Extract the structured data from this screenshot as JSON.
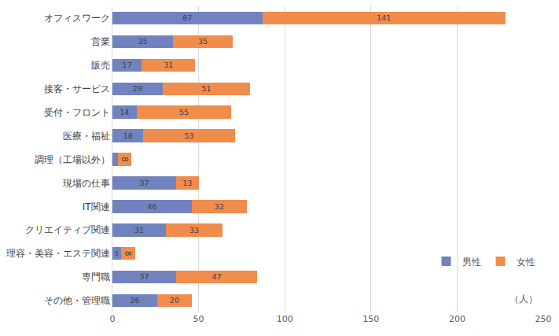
{
  "chart_data": {
    "type": "bar",
    "orientation": "horizontal",
    "stacked": true,
    "data_labels": true,
    "grid": true,
    "legend": "bottom-right",
    "annotations": [
      "（人）"
    ],
    "categories": [
      "オフィスワーク",
      "営業",
      "販売",
      "接客・サービス",
      "受付・フロント",
      "医療・福祉",
      "調理（工場以外）",
      "現場の仕事",
      "IT関連",
      "クリエイティブ関連",
      "理容・美容・エステ関連",
      "専門職",
      "その他・管理職"
    ],
    "series": [
      {
        "name": "男性",
        "color": "#7083bf",
        "values": [
          87,
          35,
          17,
          29,
          14,
          18,
          3,
          37,
          46,
          31,
          5,
          37,
          26
        ]
      },
      {
        "name": "女性",
        "color": "#f08c4c",
        "values": [
          141,
          35,
          31,
          51,
          55,
          53,
          8,
          13,
          32,
          33,
          8,
          47,
          20
        ]
      }
    ],
    "xlim": [
      0,
      250
    ],
    "xticks": [
      0,
      50,
      100,
      150,
      200,
      250
    ]
  }
}
